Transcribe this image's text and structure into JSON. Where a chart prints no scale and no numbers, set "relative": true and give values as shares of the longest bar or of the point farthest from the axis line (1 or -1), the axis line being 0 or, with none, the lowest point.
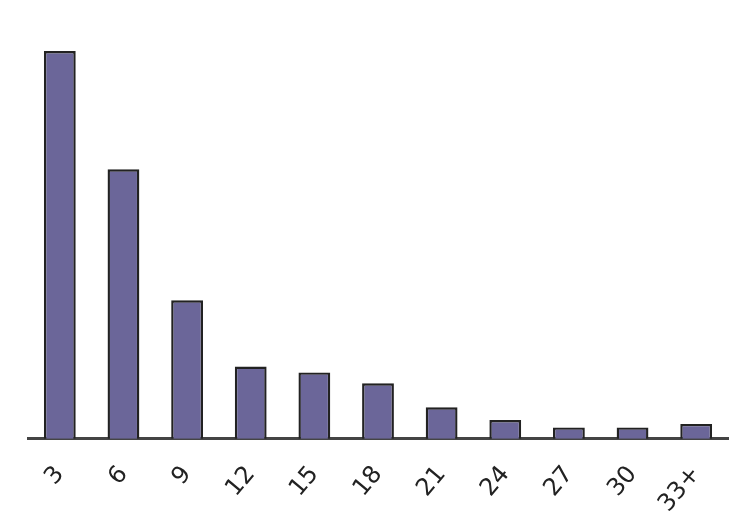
{
  "chart_data": {
    "type": "bar",
    "relative": true,
    "categories": [
      "3",
      "6",
      "9",
      "12",
      "15",
      "18",
      "21",
      "24",
      "27",
      "30",
      "33+"
    ],
    "values": [
      1,
      0.695,
      0.357,
      0.186,
      0.171,
      0.143,
      0.081,
      0.048,
      0.029,
      0.029,
      0.038
    ],
    "color": "#6b6699",
    "grid": false,
    "legend": false
  }
}
